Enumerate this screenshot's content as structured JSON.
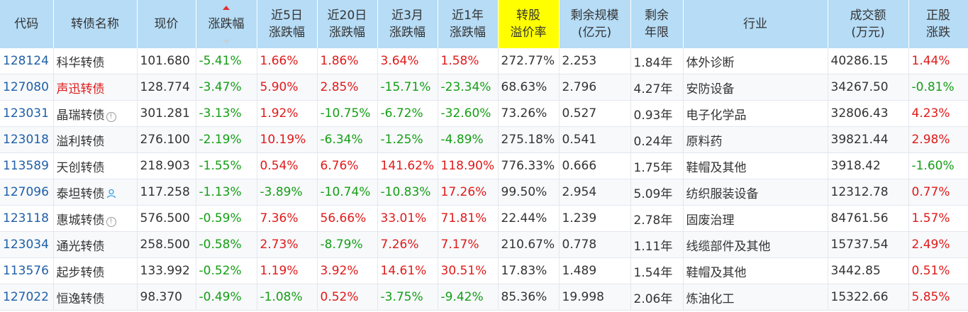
{
  "columns": [
    "代码",
    "转债名称",
    "现价",
    "涨跌幅",
    "近5日\n涨跌幅",
    "近20日\n涨跌幅",
    "近3月\n涨跌幅",
    "近1年\n涨跌幅",
    "转股\n溢价率",
    "剩余规模\n(亿元)",
    "剩余\n年限",
    "行业",
    "成交额\n(万元)",
    "正股\n涨跌"
  ],
  "header": {
    "code": "代码",
    "name": "转债名称",
    "price": "现价",
    "change": "涨跌幅",
    "c5_l1": "近5日",
    "c5_l2": "涨跌幅",
    "c20_l1": "近20日",
    "c20_l2": "涨跌幅",
    "c3m_l1": "近3月",
    "c3m_l2": "涨跌幅",
    "c1y_l1": "近1年",
    "c1y_l2": "涨跌幅",
    "prem_l1": "转股",
    "prem_l2": "溢价率",
    "scale_l1": "剩余规模",
    "scale_l2": "(亿元)",
    "years_l1": "剩余",
    "years_l2": "年限",
    "industry": "行业",
    "turnover_l1": "成交额",
    "turnover_l2": "(万元)",
    "stock_l1": "正股",
    "stock_l2": "涨跌",
    "highlight_color": "#ffff00",
    "header_bg": "#b6dcf6"
  },
  "colors": {
    "up": "#e01a1a",
    "down": "#159e15",
    "code": "#1f5fa8"
  },
  "rows": [
    {
      "code": "128124",
      "name": "科华转债",
      "name_red": false,
      "icon": "",
      "price": "101.680",
      "change": "-5.41%",
      "c5": "1.66%",
      "c20": "1.86%",
      "c3m": "3.64%",
      "c1y": "1.58%",
      "prem": "272.77%",
      "scale": "2.253",
      "years": "1.84年",
      "industry": "体外诊断",
      "turnover": "40286.15",
      "stock": "1.44%"
    },
    {
      "code": "127080",
      "name": "声迅转债",
      "name_red": true,
      "icon": "",
      "price": "128.774",
      "change": "-3.47%",
      "c5": "5.90%",
      "c20": "2.85%",
      "c3m": "-15.71%",
      "c1y": "-23.34%",
      "prem": "68.63%",
      "scale": "2.796",
      "years": "4.27年",
      "industry": "安防设备",
      "turnover": "34267.50",
      "stock": "-0.81%"
    },
    {
      "code": "123031",
      "name": "晶瑞转债",
      "name_red": false,
      "icon": "info",
      "price": "301.281",
      "change": "-3.13%",
      "c5": "1.92%",
      "c20": "-10.75%",
      "c3m": "-6.72%",
      "c1y": "-32.60%",
      "prem": "73.26%",
      "scale": "0.527",
      "years": "0.93年",
      "industry": "电子化学品",
      "turnover": "32806.43",
      "stock": "4.23%"
    },
    {
      "code": "123018",
      "name": "溢利转债",
      "name_red": false,
      "icon": "",
      "price": "276.100",
      "change": "-2.19%",
      "c5": "10.19%",
      "c20": "-6.34%",
      "c3m": "-1.25%",
      "c1y": "-4.89%",
      "prem": "275.18%",
      "scale": "0.541",
      "years": "0.24年",
      "industry": "原料药",
      "turnover": "39821.44",
      "stock": "2.98%"
    },
    {
      "code": "113589",
      "name": "天创转债",
      "name_red": false,
      "icon": "",
      "price": "218.903",
      "change": "-1.55%",
      "c5": "0.54%",
      "c20": "6.76%",
      "c3m": "141.62%",
      "c1y": "118.90%",
      "prem": "776.33%",
      "scale": "0.666",
      "years": "1.75年",
      "industry": "鞋帽及其他",
      "turnover": "3918.42",
      "stock": "-1.60%"
    },
    {
      "code": "127096",
      "name": "泰坦转债",
      "name_red": false,
      "icon": "person",
      "price": "117.258",
      "change": "-1.13%",
      "c5": "-3.89%",
      "c20": "-10.74%",
      "c3m": "-10.83%",
      "c1y": "17.26%",
      "prem": "99.50%",
      "scale": "2.954",
      "years": "5.09年",
      "industry": "纺织服装设备",
      "turnover": "12312.78",
      "stock": "0.77%"
    },
    {
      "code": "123118",
      "name": "惠城转债",
      "name_red": false,
      "icon": "info",
      "price": "576.500",
      "change": "-0.59%",
      "c5": "7.36%",
      "c20": "56.66%",
      "c3m": "33.01%",
      "c1y": "71.81%",
      "prem": "22.44%",
      "scale": "1.239",
      "years": "2.78年",
      "industry": "固废治理",
      "turnover": "84761.56",
      "stock": "1.57%"
    },
    {
      "code": "123034",
      "name": "通光转债",
      "name_red": false,
      "icon": "",
      "price": "258.500",
      "change": "-0.58%",
      "c5": "2.73%",
      "c20": "-8.79%",
      "c3m": "7.26%",
      "c1y": "7.17%",
      "prem": "210.67%",
      "scale": "0.778",
      "years": "1.11年",
      "industry": "线缆部件及其他",
      "turnover": "15737.54",
      "stock": "2.49%"
    },
    {
      "code": "113576",
      "name": "起步转债",
      "name_red": false,
      "icon": "",
      "price": "133.992",
      "change": "-0.52%",
      "c5": "1.19%",
      "c20": "3.92%",
      "c3m": "14.61%",
      "c1y": "30.51%",
      "prem": "17.83%",
      "scale": "1.489",
      "years": "1.54年",
      "industry": "鞋帽及其他",
      "turnover": "3442.85",
      "stock": "0.51%"
    },
    {
      "code": "127022",
      "name": "恒逸转债",
      "name_red": false,
      "icon": "",
      "price": "98.370",
      "change": "-0.49%",
      "c5": "-1.08%",
      "c20": "0.52%",
      "c3m": "-3.75%",
      "c1y": "-9.42%",
      "prem": "85.36%",
      "scale": "19.998",
      "years": "2.06年",
      "industry": "炼油化工",
      "turnover": "15322.66",
      "stock": "5.85%"
    }
  ]
}
